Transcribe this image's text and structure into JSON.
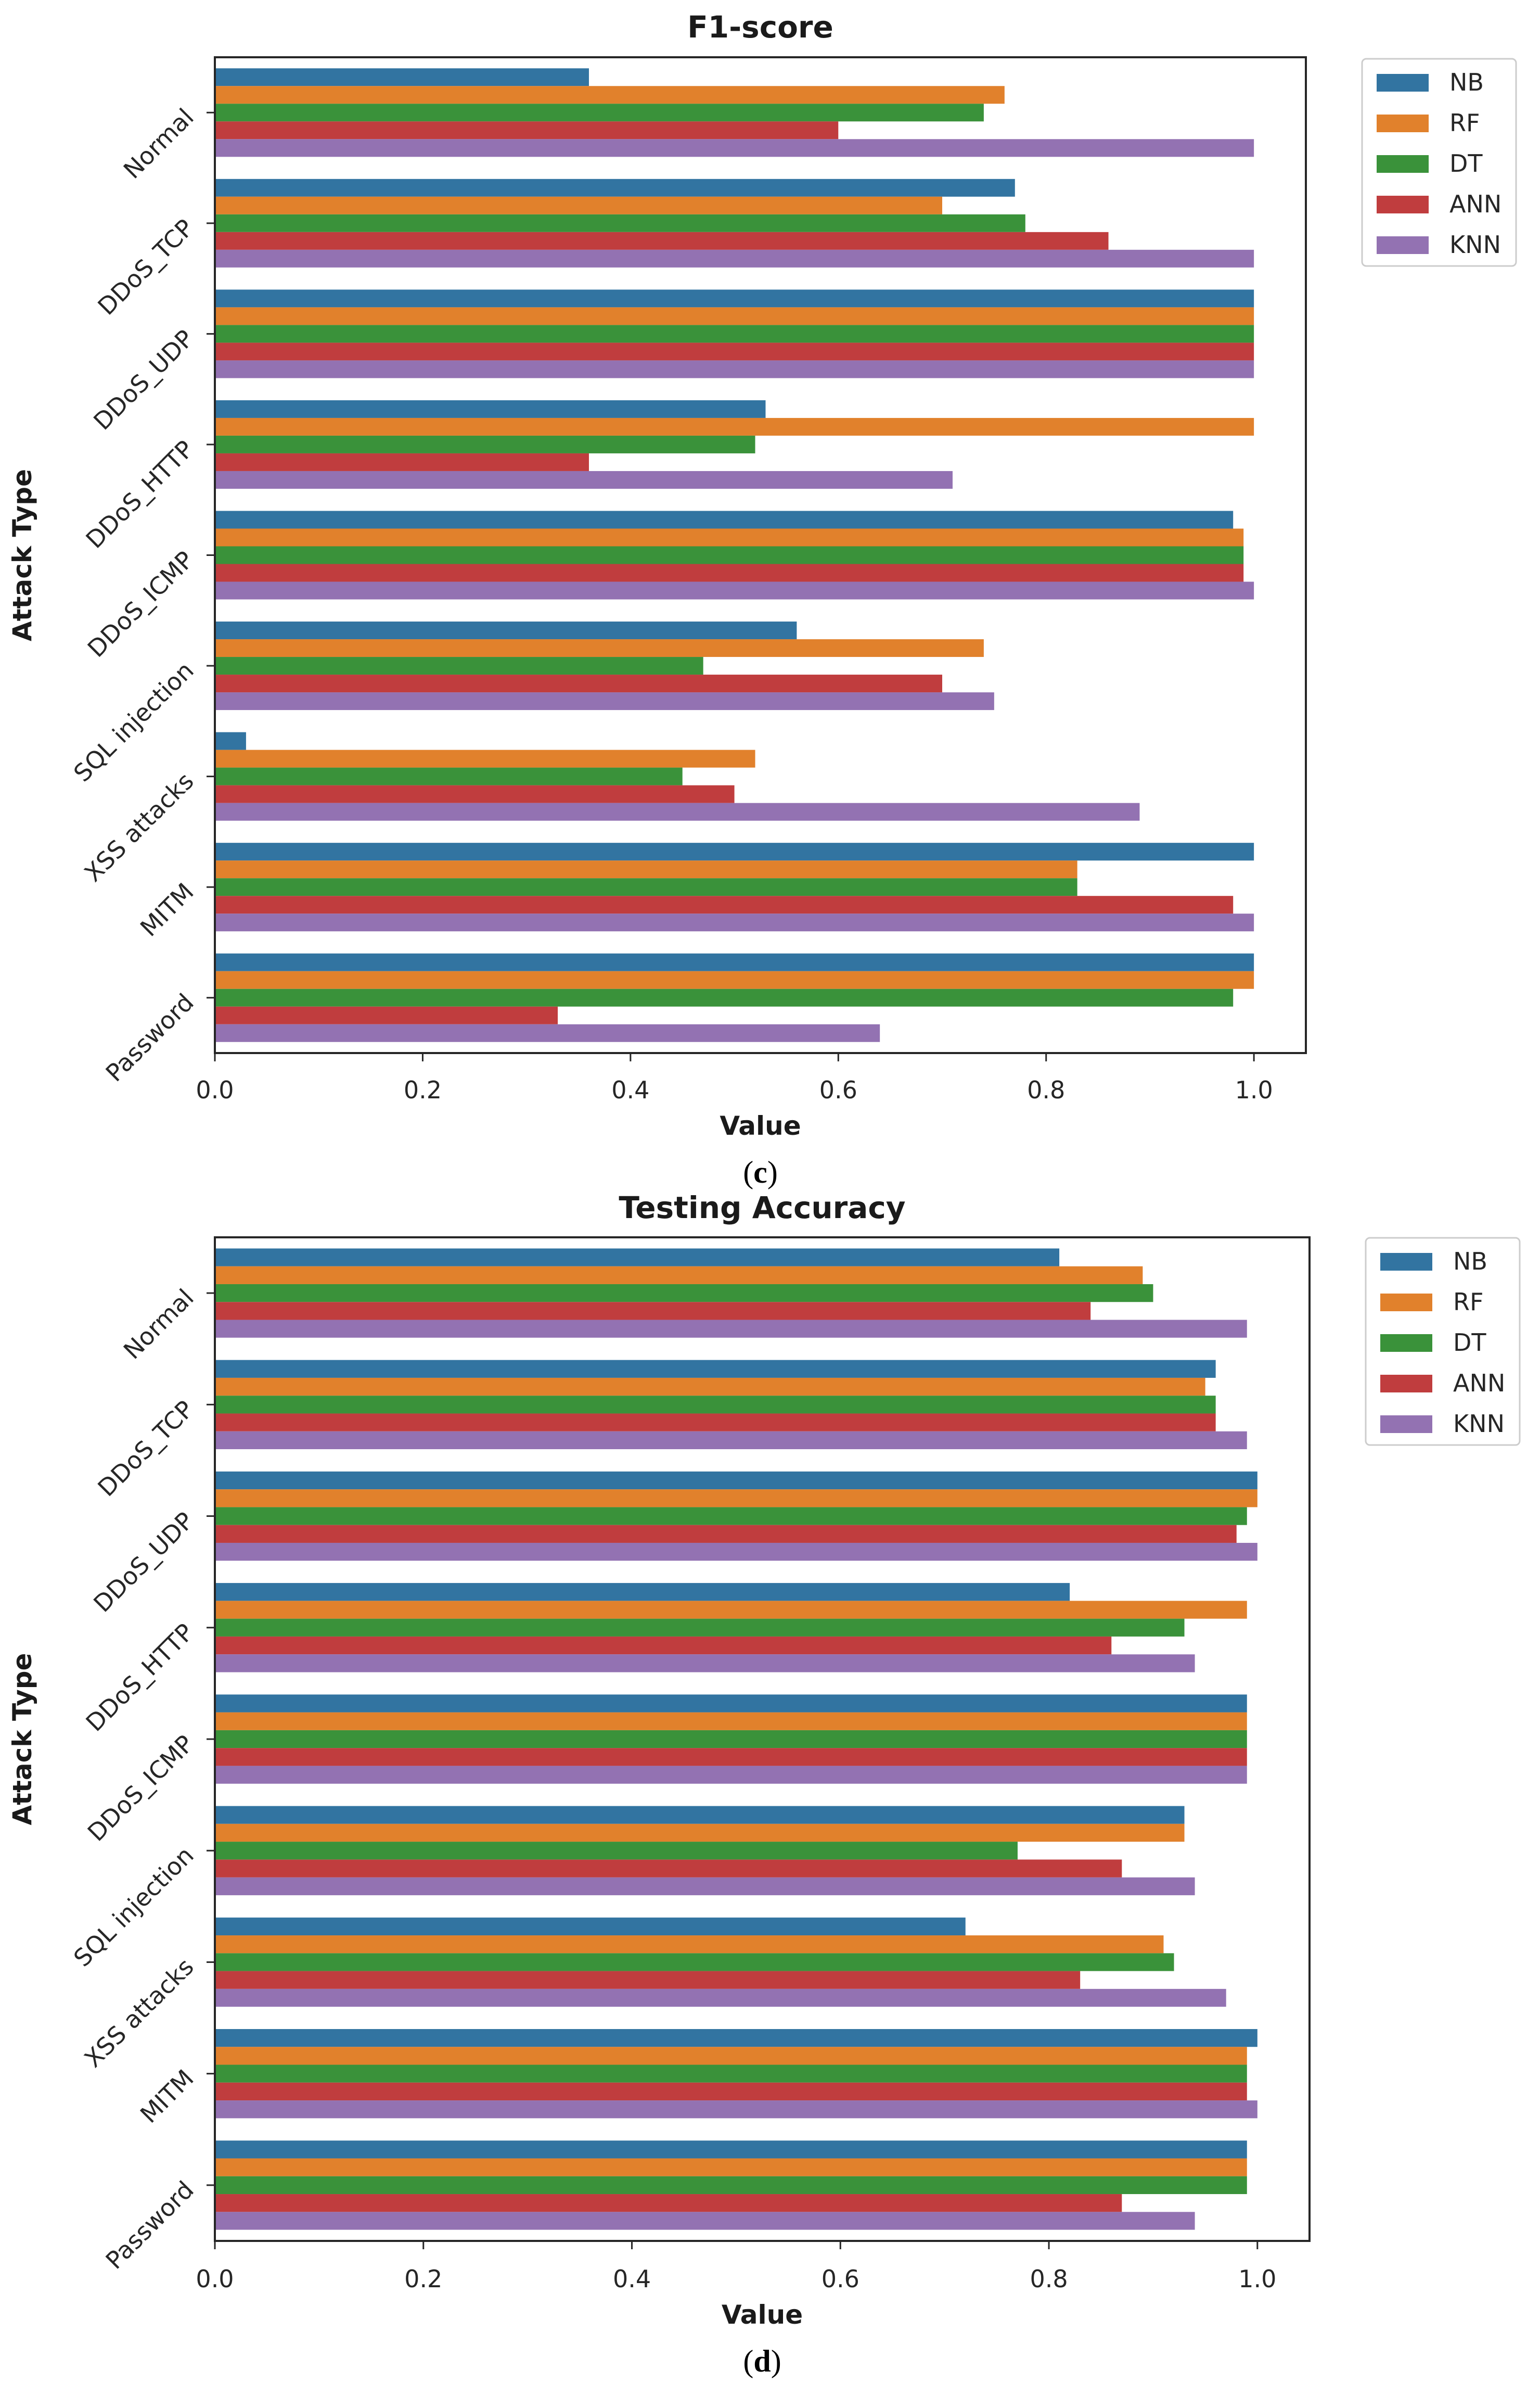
{
  "chart_data": [
    {
      "type": "bar",
      "orientation": "horizontal",
      "title": "F1-score",
      "xlabel": "Value",
      "ylabel": "Attack Type",
      "panel_label": "c",
      "xlim": [
        0.0,
        1.05
      ],
      "xticks": [
        "0.0",
        "0.2",
        "0.4",
        "0.6",
        "0.8",
        "1.0"
      ],
      "categories": [
        "Normal",
        "DDoS_TCP",
        "DDoS_UDP",
        "DDoS_HTTP",
        "DDoS_ICMP",
        "SQL injection",
        "XSS attacks",
        "MITM",
        "Password"
      ],
      "legend_position": "outside-top-right",
      "series": [
        {
          "name": "NB",
          "color": "#3274a1",
          "values": [
            0.36,
            0.77,
            1.0,
            0.53,
            0.98,
            0.56,
            0.03,
            1.0,
            1.0
          ]
        },
        {
          "name": "RF",
          "color": "#e1812c",
          "values": [
            0.76,
            0.7,
            1.0,
            1.0,
            0.99,
            0.74,
            0.52,
            0.83,
            1.0
          ]
        },
        {
          "name": "DT",
          "color": "#3a923a",
          "values": [
            0.74,
            0.78,
            1.0,
            0.52,
            0.99,
            0.47,
            0.45,
            0.83,
            0.98
          ]
        },
        {
          "name": "ANN",
          "color": "#c03d3e",
          "values": [
            0.6,
            0.86,
            1.0,
            0.36,
            0.99,
            0.7,
            0.5,
            0.98,
            0.33
          ]
        },
        {
          "name": "KNN",
          "color": "#9372b2",
          "values": [
            1.0,
            1.0,
            1.0,
            0.71,
            1.0,
            0.75,
            0.89,
            1.0,
            0.64
          ]
        }
      ]
    },
    {
      "type": "bar",
      "orientation": "horizontal",
      "title": "Testing Accuracy",
      "xlabel": "Value",
      "ylabel": "Attack Type",
      "panel_label": "d",
      "xlim": [
        0.0,
        1.05
      ],
      "xticks": [
        "0.0",
        "0.2",
        "0.4",
        "0.6",
        "0.8",
        "1.0"
      ],
      "categories": [
        "Normal",
        "DDoS_TCP",
        "DDoS_UDP",
        "DDoS_HTTP",
        "DDoS_ICMP",
        "SQL injection",
        "XSS attacks",
        "MITM",
        "Password"
      ],
      "legend_position": "outside-top-right",
      "series": [
        {
          "name": "NB",
          "color": "#3274a1",
          "values": [
            0.81,
            0.96,
            1.0,
            0.82,
            0.99,
            0.93,
            0.72,
            1.0,
            0.99
          ]
        },
        {
          "name": "RF",
          "color": "#e1812c",
          "values": [
            0.89,
            0.95,
            1.0,
            0.99,
            0.99,
            0.93,
            0.91,
            0.99,
            0.99
          ]
        },
        {
          "name": "DT",
          "color": "#3a923a",
          "values": [
            0.9,
            0.96,
            0.99,
            0.93,
            0.99,
            0.77,
            0.92,
            0.99,
            0.99
          ]
        },
        {
          "name": "ANN",
          "color": "#c03d3e",
          "values": [
            0.84,
            0.96,
            0.98,
            0.86,
            0.99,
            0.87,
            0.83,
            0.99,
            0.87
          ]
        },
        {
          "name": "KNN",
          "color": "#9372b2",
          "values": [
            0.99,
            0.99,
            1.0,
            0.94,
            0.99,
            0.94,
            0.97,
            1.0,
            0.94
          ]
        }
      ]
    }
  ]
}
